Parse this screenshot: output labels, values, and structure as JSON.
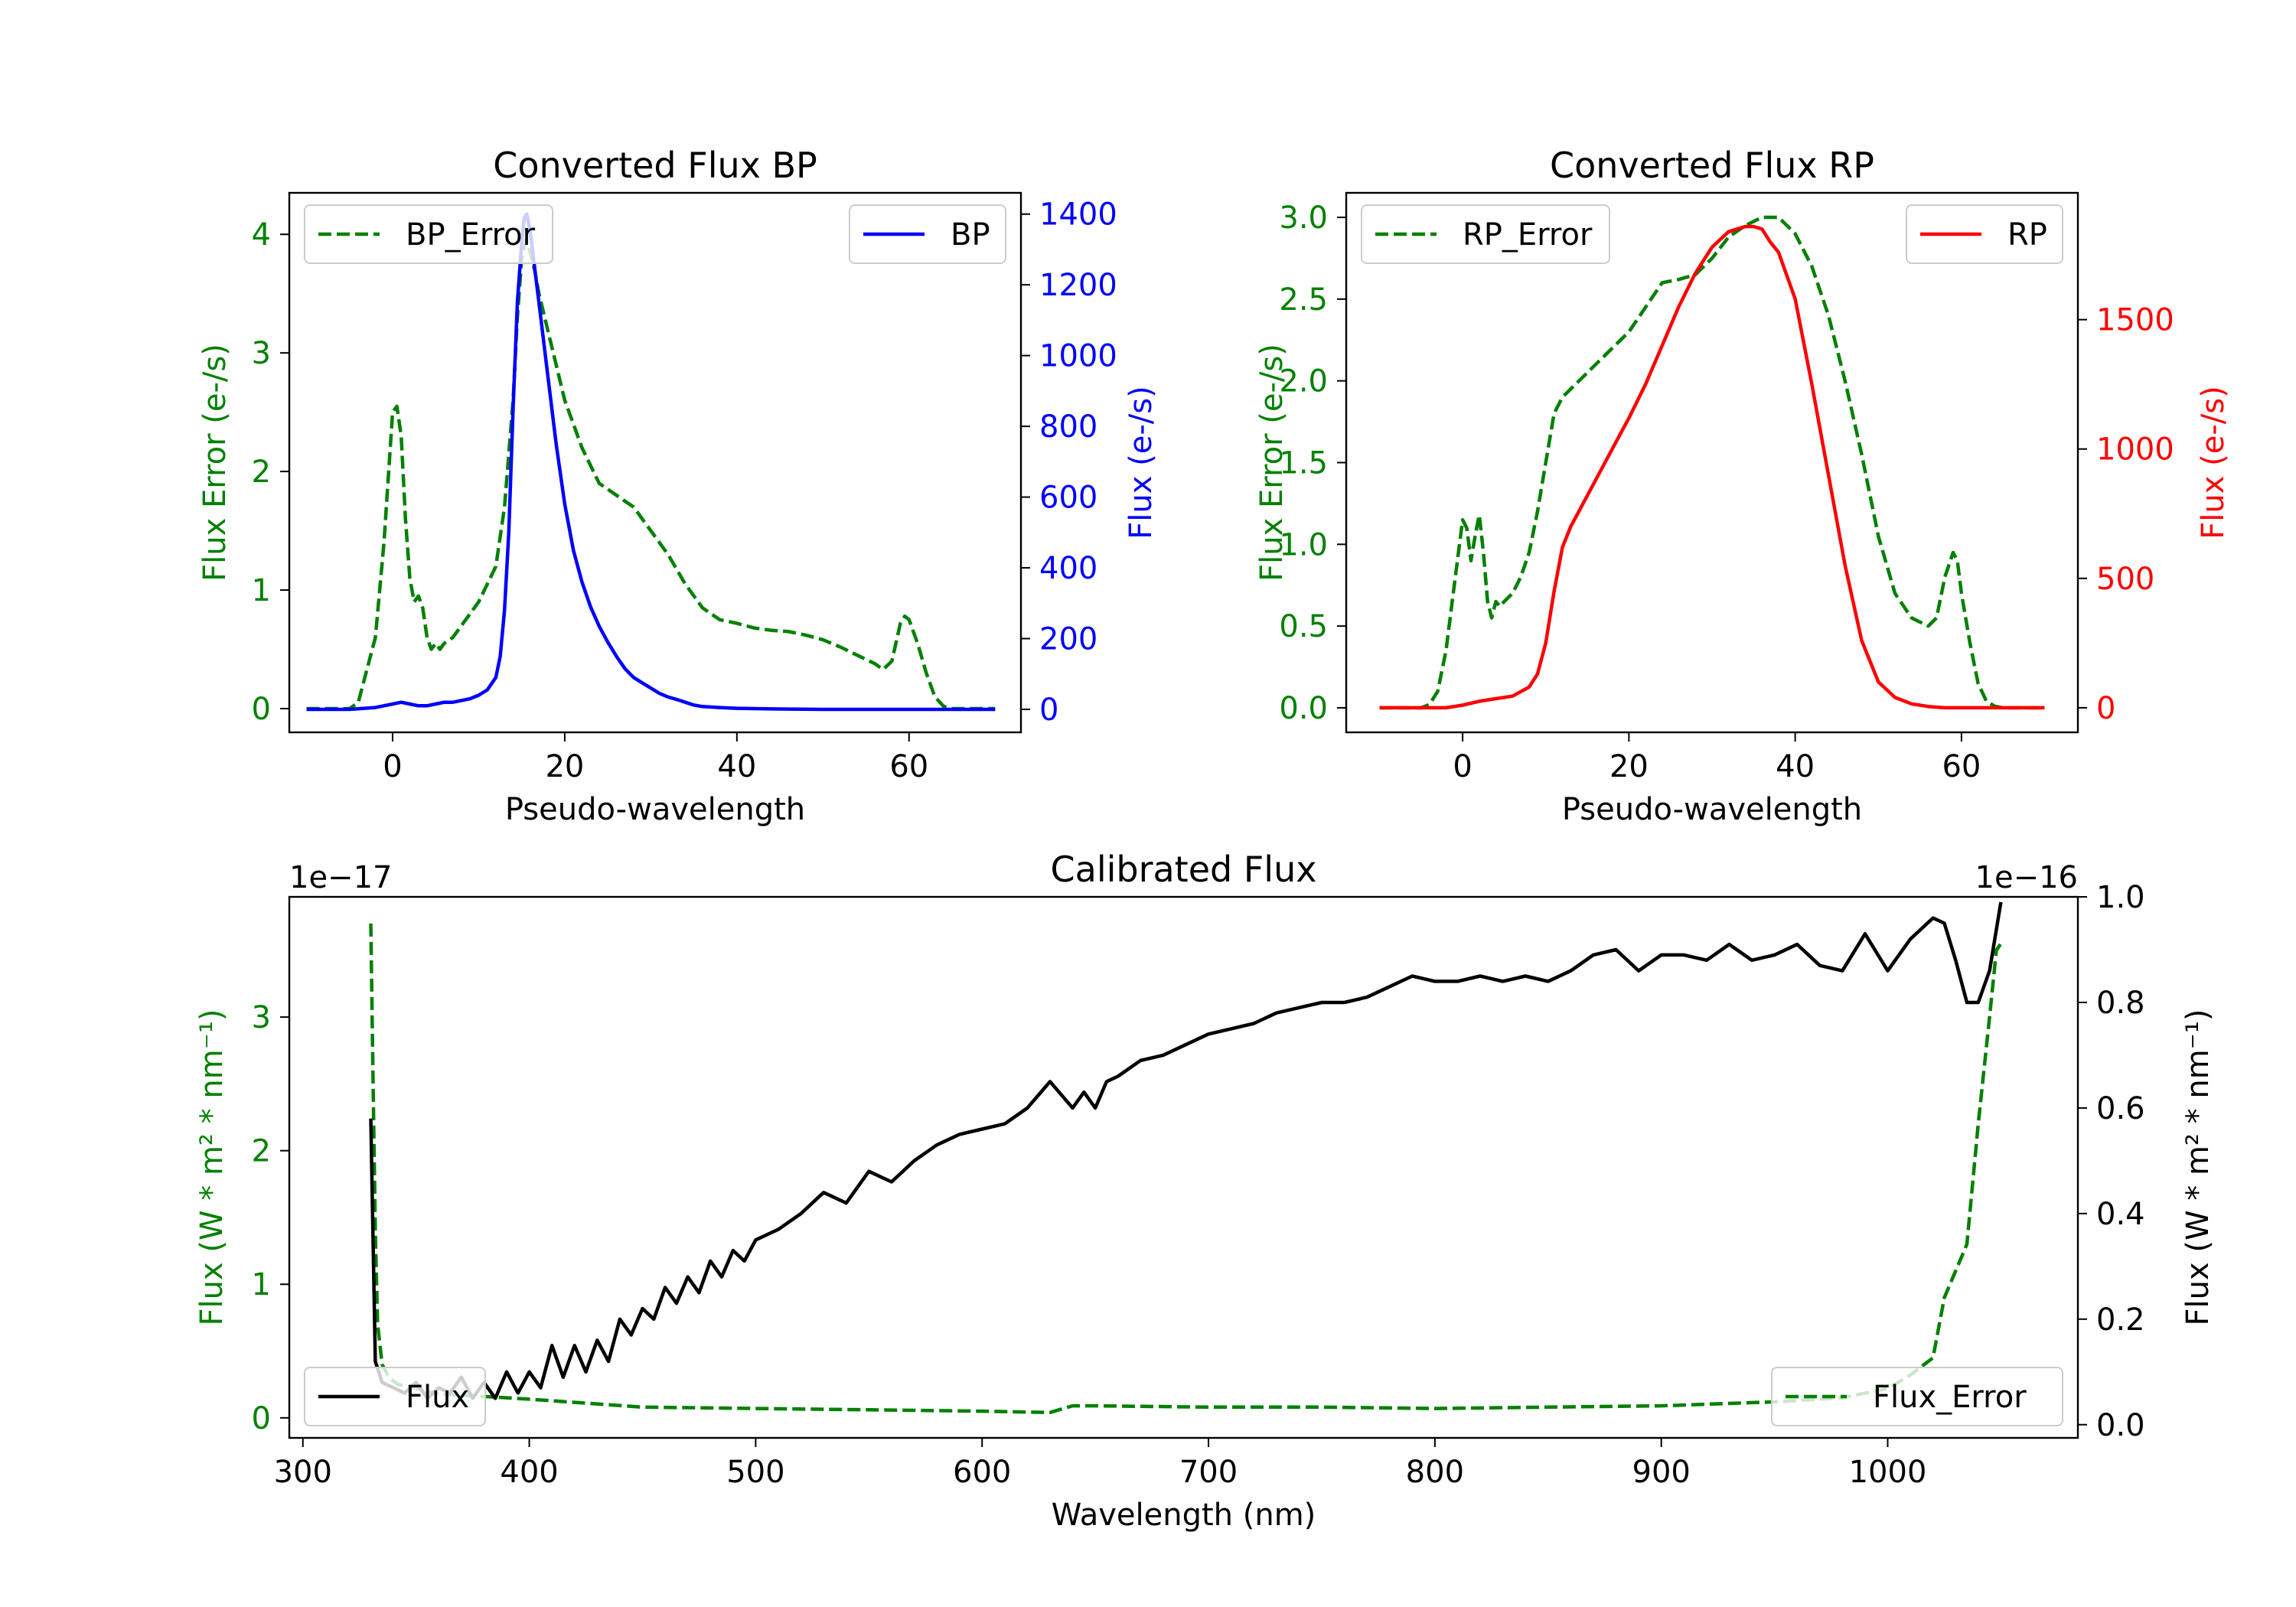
{
  "colors": {
    "bp": "#0000ff",
    "rp": "#ff0000",
    "error": "#008000",
    "flux": "#000000",
    "axes": "#000000",
    "legend_edge": "#cccccc"
  },
  "chart_data": [
    {
      "type": "line",
      "title": "Converted Flux BP",
      "xlabel": "Pseudo-wavelength",
      "ylabel_left": "Flux Error (e-/s)",
      "ylabel_right": "Flux (e-/s)",
      "xlim": [
        -12,
        73
      ],
      "ylim_left": [
        -0.2,
        4.35
      ],
      "ylim_right": [
        -65,
        1460
      ],
      "xticks": [
        0,
        20,
        40,
        60
      ],
      "xtick_labels": [
        "0",
        "20",
        "40",
        "60"
      ],
      "yticks_left": [
        0,
        1,
        2,
        3,
        4
      ],
      "ytick_labels_left": [
        "0",
        "1",
        "2",
        "3",
        "4"
      ],
      "yticks_right": [
        0,
        200,
        400,
        600,
        800,
        1000,
        1200,
        1400
      ],
      "ytick_labels_right": [
        "0",
        "200",
        "400",
        "600",
        "800",
        "1000",
        "1200",
        "1400"
      ],
      "legend_left": {
        "label": "BP_Error",
        "placement": "upper left"
      },
      "legend_right": {
        "label": "BP",
        "placement": "upper right"
      },
      "series": [
        {
          "name": "BP_Error",
          "axis": "left",
          "style": "dashed",
          "color": "#008000",
          "x": [
            -10,
            -5,
            -4,
            -2,
            -1,
            0,
            0.5,
            1,
            1.5,
            2,
            2.5,
            3,
            3.5,
            4,
            4.5,
            5,
            5.5,
            6,
            7,
            8,
            9,
            10,
            11,
            12,
            13,
            14,
            14.5,
            15,
            15.5,
            16,
            16.5,
            17,
            18,
            19,
            20,
            21,
            22,
            24,
            26,
            28,
            30,
            32,
            34,
            36,
            38,
            40,
            42,
            44,
            46,
            48,
            50,
            52,
            54,
            56,
            57,
            58,
            59,
            59.5,
            60,
            61,
            62,
            63,
            64,
            65,
            67,
            70
          ],
          "values": [
            0,
            0,
            0.05,
            0.6,
            1.4,
            2.5,
            2.55,
            2.3,
            1.6,
            1.1,
            0.9,
            0.95,
            0.85,
            0.6,
            0.5,
            0.55,
            0.5,
            0.55,
            0.6,
            0.7,
            0.8,
            0.9,
            1.05,
            1.2,
            1.7,
            2.6,
            3.3,
            3.8,
            3.95,
            3.85,
            3.7,
            3.5,
            3.2,
            2.9,
            2.6,
            2.4,
            2.2,
            1.9,
            1.8,
            1.7,
            1.5,
            1.3,
            1.05,
            0.85,
            0.75,
            0.72,
            0.68,
            0.66,
            0.65,
            0.62,
            0.58,
            0.52,
            0.45,
            0.38,
            0.33,
            0.4,
            0.72,
            0.78,
            0.75,
            0.55,
            0.3,
            0.1,
            0.02,
            0,
            0,
            0
          ]
        },
        {
          "name": "BP",
          "axis": "right",
          "style": "solid",
          "color": "#0000ff",
          "x": [
            -10,
            -5,
            -2,
            0,
            1,
            2,
            3,
            4,
            5,
            6,
            7,
            8,
            9,
            10,
            11,
            12,
            12.5,
            13,
            13.5,
            14,
            14.5,
            15,
            15.3,
            15.6,
            16,
            16.5,
            17,
            18,
            19,
            20,
            21,
            22,
            23,
            24,
            25,
            26,
            27,
            28,
            29,
            30,
            31,
            32,
            33,
            34,
            35,
            36,
            38,
            40,
            42,
            45,
            50,
            55,
            60,
            65,
            70
          ],
          "values": [
            0,
            0,
            5,
            15,
            20,
            15,
            10,
            10,
            15,
            20,
            20,
            25,
            30,
            40,
            55,
            90,
            150,
            280,
            500,
            850,
            1150,
            1320,
            1390,
            1400,
            1350,
            1250,
            1150,
            950,
            750,
            580,
            450,
            360,
            290,
            235,
            190,
            150,
            115,
            90,
            75,
            60,
            45,
            35,
            28,
            20,
            12,
            8,
            5,
            3,
            2,
            1,
            0,
            0,
            0,
            0,
            0
          ]
        }
      ]
    },
    {
      "type": "line",
      "title": "Converted Flux RP",
      "xlabel": "Pseudo-wavelength",
      "ylabel_left": "Flux Error (e-/s)",
      "ylabel_right": "Flux (e-/s)",
      "xlim": [
        -14,
        74
      ],
      "ylim_left": [
        -0.15,
        3.15
      ],
      "ylim_right": [
        -95,
        1990
      ],
      "xticks": [
        0,
        20,
        40,
        60
      ],
      "xtick_labels": [
        "0",
        "20",
        "40",
        "60"
      ],
      "yticks_left": [
        0,
        0.5,
        1,
        1.5,
        2,
        2.5,
        3
      ],
      "ytick_labels_left": [
        "0.0",
        "0.5",
        "1.0",
        "1.5",
        "2.0",
        "2.5",
        "3.0"
      ],
      "yticks_right": [
        0,
        500,
        1000,
        1500
      ],
      "ytick_labels_right": [
        "0",
        "500",
        "1000",
        "1500"
      ],
      "legend_left": {
        "label": "RP_Error",
        "placement": "upper left"
      },
      "legend_right": {
        "label": "RP",
        "placement": "upper right"
      },
      "series": [
        {
          "name": "RP_Error",
          "axis": "left",
          "style": "dashed",
          "color": "#008000",
          "x": [
            -10,
            -5,
            -4,
            -3,
            -2,
            -1,
            0,
            0.5,
            1,
            1.5,
            2,
            2.5,
            3,
            3.5,
            4,
            4.5,
            5,
            6,
            7,
            8,
            9,
            10,
            11,
            12,
            13,
            14,
            16,
            18,
            20,
            22,
            24,
            26,
            28,
            30,
            32,
            34,
            36,
            37,
            38,
            39,
            40,
            42,
            44,
            46,
            48,
            50,
            52,
            54,
            56,
            57,
            58,
            59,
            59.5,
            60,
            61,
            62,
            63,
            64,
            65,
            66,
            70
          ],
          "values": [
            0,
            0,
            0.02,
            0.1,
            0.35,
            0.75,
            1.15,
            1.1,
            0.9,
            1.05,
            1.18,
            0.95,
            0.65,
            0.55,
            0.65,
            0.62,
            0.65,
            0.7,
            0.8,
            0.95,
            1.2,
            1.5,
            1.8,
            1.9,
            1.95,
            2.0,
            2.1,
            2.2,
            2.3,
            2.45,
            2.6,
            2.62,
            2.65,
            2.75,
            2.88,
            2.95,
            3.0,
            3.0,
            3.0,
            2.95,
            2.9,
            2.7,
            2.4,
            2.0,
            1.55,
            1.05,
            0.7,
            0.55,
            0.5,
            0.55,
            0.8,
            0.95,
            0.9,
            0.7,
            0.4,
            0.15,
            0.04,
            0.01,
            0,
            0,
            0
          ]
        },
        {
          "name": "RP",
          "axis": "right",
          "style": "solid",
          "color": "#ff0000",
          "x": [
            -10,
            -5,
            -2,
            0,
            2,
            4,
            6,
            8,
            9,
            10,
            11,
            12,
            13,
            14,
            16,
            18,
            20,
            22,
            24,
            26,
            28,
            30,
            32,
            34,
            35,
            36,
            37,
            38,
            40,
            42,
            44,
            46,
            48,
            50,
            52,
            54,
            56,
            58,
            60,
            65,
            70
          ],
          "values": [
            0,
            0,
            0,
            10,
            25,
            35,
            45,
            80,
            130,
            250,
            450,
            620,
            700,
            760,
            880,
            1000,
            1120,
            1250,
            1400,
            1550,
            1680,
            1780,
            1840,
            1860,
            1860,
            1850,
            1800,
            1760,
            1580,
            1250,
            900,
            550,
            260,
            100,
            40,
            15,
            5,
            0,
            0,
            0,
            0
          ]
        }
      ]
    },
    {
      "type": "line",
      "title": "Calibrated Flux",
      "xlabel": "Wavelength (nm)",
      "ylabel_left": "Flux (W * m² * nm⁻¹)",
      "ylabel_right": "Flux (W * m² * nm⁻¹)",
      "offset_left": "1e−17",
      "offset_right": "1e−16",
      "xlim": [
        294,
        1084
      ],
      "ylim_left": [
        -0.15,
        3.9
      ],
      "ylim_right": [
        -0.025,
        1.0
      ],
      "xticks": [
        300,
        400,
        500,
        600,
        700,
        800,
        900,
        1000
      ],
      "xtick_labels": [
        "300",
        "400",
        "500",
        "600",
        "700",
        "800",
        "900",
        "1000"
      ],
      "yticks_left": [
        0,
        1,
        2,
        3
      ],
      "ytick_labels_left": [
        "0",
        "1",
        "2",
        "3"
      ],
      "yticks_right": [
        0,
        0.2,
        0.4,
        0.6,
        0.8,
        1.0
      ],
      "ytick_labels_right": [
        "0.0",
        "0.2",
        "0.4",
        "0.6",
        "0.8",
        "1.0"
      ],
      "legend_left": {
        "label": "Flux",
        "placement": "lower left"
      },
      "legend_right": {
        "label": "Flux_Error",
        "placement": "lower right"
      },
      "series": [
        {
          "name": "Flux_Error",
          "axis": "left",
          "style": "dashed",
          "color": "#008000",
          "x": [
            330,
            331,
            332,
            333,
            335,
            338,
            342,
            350,
            360,
            380,
            400,
            450,
            500,
            550,
            600,
            630,
            640,
            650,
            700,
            750,
            800,
            850,
            900,
            950,
            980,
            1000,
            1010,
            1020,
            1025,
            1030,
            1035,
            1040,
            1045,
            1048,
            1050
          ],
          "values": [
            3.7,
            2.5,
            1.4,
            0.7,
            0.4,
            0.3,
            0.25,
            0.22,
            0.18,
            0.16,
            0.14,
            0.08,
            0.07,
            0.06,
            0.05,
            0.04,
            0.09,
            0.09,
            0.08,
            0.08,
            0.07,
            0.08,
            0.09,
            0.12,
            0.15,
            0.22,
            0.32,
            0.45,
            0.9,
            1.1,
            1.3,
            2.2,
            3.0,
            3.5,
            3.55
          ]
        },
        {
          "name": "Flux",
          "axis": "right",
          "style": "solid",
          "color": "#000000",
          "x": [
            330,
            332,
            335,
            340,
            345,
            350,
            355,
            360,
            365,
            370,
            375,
            380,
            385,
            390,
            395,
            400,
            405,
            410,
            415,
            420,
            425,
            430,
            435,
            440,
            445,
            450,
            455,
            460,
            465,
            470,
            475,
            480,
            485,
            490,
            495,
            500,
            510,
            520,
            530,
            540,
            550,
            560,
            570,
            580,
            590,
            600,
            610,
            620,
            630,
            640,
            645,
            650,
            655,
            660,
            670,
            680,
            690,
            700,
            710,
            720,
            730,
            740,
            750,
            760,
            770,
            780,
            790,
            800,
            810,
            820,
            830,
            840,
            850,
            860,
            870,
            880,
            890,
            900,
            910,
            920,
            930,
            940,
            950,
            960,
            970,
            980,
            990,
            1000,
            1010,
            1020,
            1025,
            1030,
            1035,
            1040,
            1045,
            1050
          ],
          "values": [
            0.58,
            0.12,
            0.08,
            0.07,
            0.06,
            0.08,
            0.05,
            0.07,
            0.06,
            0.09,
            0.05,
            0.08,
            0.05,
            0.1,
            0.06,
            0.1,
            0.07,
            0.15,
            0.09,
            0.15,
            0.1,
            0.16,
            0.12,
            0.2,
            0.17,
            0.22,
            0.2,
            0.26,
            0.23,
            0.28,
            0.25,
            0.31,
            0.28,
            0.33,
            0.31,
            0.35,
            0.37,
            0.4,
            0.44,
            0.42,
            0.48,
            0.46,
            0.5,
            0.53,
            0.55,
            0.56,
            0.57,
            0.6,
            0.65,
            0.6,
            0.63,
            0.6,
            0.65,
            0.66,
            0.69,
            0.7,
            0.72,
            0.74,
            0.75,
            0.76,
            0.78,
            0.79,
            0.8,
            0.8,
            0.81,
            0.83,
            0.85,
            0.84,
            0.84,
            0.85,
            0.84,
            0.85,
            0.84,
            0.86,
            0.89,
            0.9,
            0.86,
            0.89,
            0.89,
            0.88,
            0.91,
            0.88,
            0.89,
            0.91,
            0.87,
            0.86,
            0.93,
            0.86,
            0.92,
            0.96,
            0.95,
            0.88,
            0.8,
            0.8,
            0.86,
            0.99
          ]
        }
      ]
    }
  ]
}
